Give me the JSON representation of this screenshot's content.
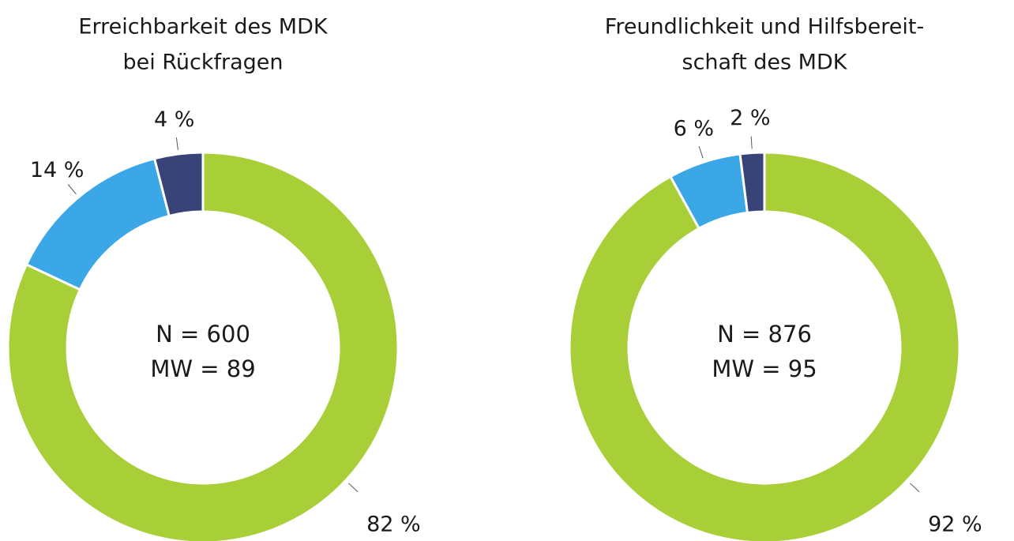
{
  "chart_data": [
    {
      "type": "donut",
      "title": [
        "Erreichbarkeit des MDK",
        "bei Rückfragen"
      ],
      "values": [
        82,
        14,
        4
      ],
      "value_labels": [
        "82 %",
        "14 %",
        "4 %"
      ],
      "colors": [
        "#a8cf38",
        "#3ba7e6",
        "#384478"
      ],
      "annotations": [
        "N = 600",
        "MW = 89"
      ]
    },
    {
      "type": "donut",
      "title": [
        "Freundlichkeit und Hilfsbereit-",
        "schaft des MDK"
      ],
      "values": [
        92,
        6,
        2
      ],
      "value_labels": [
        "92 %",
        "6 %",
        "2 %"
      ],
      "colors": [
        "#a8cf38",
        "#3ba7e6",
        "#384478"
      ],
      "annotations": [
        "N = 876",
        "MW = 95"
      ]
    }
  ]
}
